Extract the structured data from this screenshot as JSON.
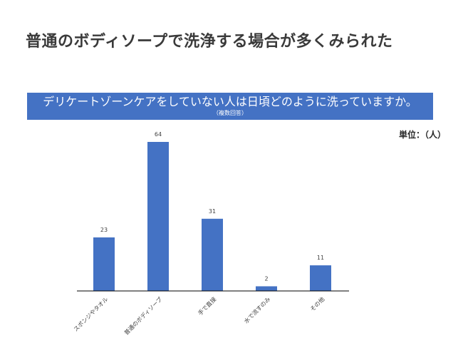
{
  "headline": "普通のボディソープで洗浄する場合が多くみられた",
  "question": {
    "main": "デリケートゾーンケアをしていない人は日頃どのように洗っていますか。",
    "sub": "（複数回答）"
  },
  "unit_label": "単位：（人）",
  "colors": {
    "bar": "#4472c4",
    "axis": "#000000",
    "label": "#404040"
  },
  "chart_data": {
    "type": "bar",
    "categories": [
      "スポンジやタオル",
      "普通のボディソープ",
      "手で直接",
      "水で流すのみ",
      "その他"
    ],
    "values": [
      23,
      64,
      31,
      2,
      11
    ],
    "title": "",
    "xlabel": "",
    "ylabel": "",
    "ylim": [
      0,
      64
    ],
    "grid": false,
    "data_labels": true,
    "legend": "none"
  }
}
